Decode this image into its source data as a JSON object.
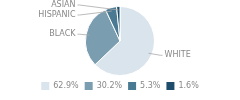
{
  "chart_data": {
    "type": "pie",
    "categories": [
      "WHITE",
      "BLACK",
      "HISPANIC",
      "ASIAN"
    ],
    "values": [
      62.9,
      30.2,
      5.3,
      1.6
    ],
    "value_labels": [
      "62.9%",
      "30.2%",
      "5.3%",
      "1.6%"
    ],
    "colors": [
      "#d9e4ed",
      "#7a9db0",
      "#4a7a93",
      "#1e4d6b"
    ],
    "legend": "bottom"
  }
}
